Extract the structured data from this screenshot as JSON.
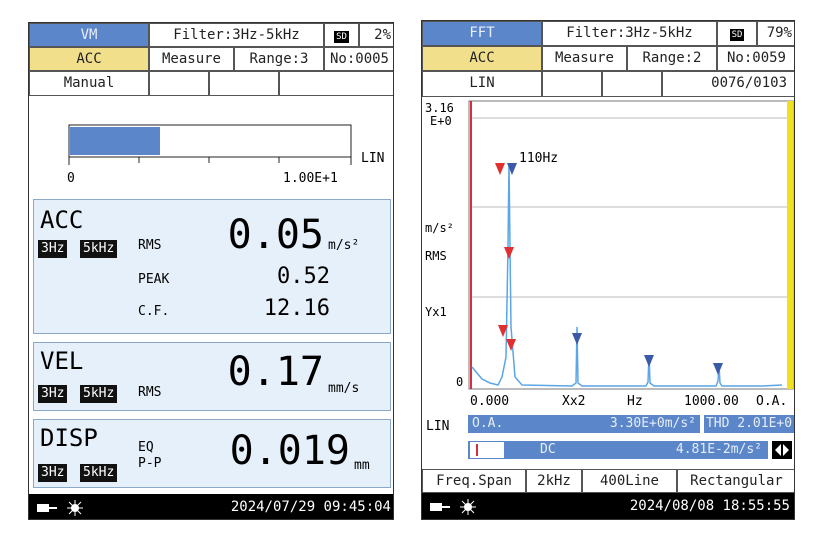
{
  "left": {
    "header": {
      "mode": "VM",
      "filter": "Filter:3Hz-5kHz",
      "sd": "SD",
      "battery": "2%"
    },
    "status": {
      "channel": "ACC",
      "state": "Measure",
      "range": "Range:3",
      "number": "No:0005"
    },
    "trigger": "Manual",
    "level_bar": {
      "min": "0",
      "max": "1.00E+1",
      "scale": "LIN"
    },
    "panels": [
      {
        "name": "ACC",
        "filters": [
          "3Hz",
          "5kHz"
        ],
        "rows": [
          {
            "label": "RMS",
            "value": "0.05",
            "unit": "m/s²"
          },
          {
            "label": "PEAK",
            "value": "0.52"
          },
          {
            "label": "C.F.",
            "value": "12.16"
          }
        ]
      },
      {
        "name": "VEL",
        "filters": [
          "3Hz",
          "5kHz"
        ],
        "rows": [
          {
            "label": "RMS",
            "value": "0.17",
            "unit": "mm/s"
          }
        ]
      },
      {
        "name": "DISP",
        "filters": [
          "3Hz",
          "5kHz"
        ],
        "labels": [
          "EQ",
          "P-P"
        ],
        "value": "0.019",
        "unit": "mm"
      }
    ],
    "footer": {
      "datetime": "2024/07/29 09:45:04"
    }
  },
  "right": {
    "header": {
      "mode": "FFT",
      "filter": "Filter:3Hz-5kHz",
      "sd": "SD",
      "battery": "79%"
    },
    "status": {
      "channel": "ACC",
      "state": "Measure",
      "range": "Range:2",
      "number": "No:0059"
    },
    "scale_row": {
      "scale": "LIN",
      "count": "0076/0103"
    },
    "spectrum": {
      "ymax": "3.16",
      "yexp": "E+0",
      "yunit": "m/s²",
      "ymode": "RMS",
      "yzoom": "Yx1",
      "ymin": "0",
      "peak_label": "110Hz",
      "xmin": "0.000",
      "xzoom": "Xx2",
      "xunit": "Hz",
      "xmax": "1000.00",
      "xend": "O.A."
    },
    "info": {
      "scale": "LIN",
      "oa_label": "O.A.",
      "oa_value": "3.30E+0m/s²",
      "thd": "THD 2.01E+0",
      "dc_label": "DC",
      "dc_value": "4.81E-2m/s²"
    },
    "settings": {
      "span_label": "Freq.Span",
      "span": "2kHz",
      "lines": "400Line",
      "window": "Rectangular"
    },
    "footer": {
      "datetime": "2024/08/08 18:55:55"
    }
  }
}
